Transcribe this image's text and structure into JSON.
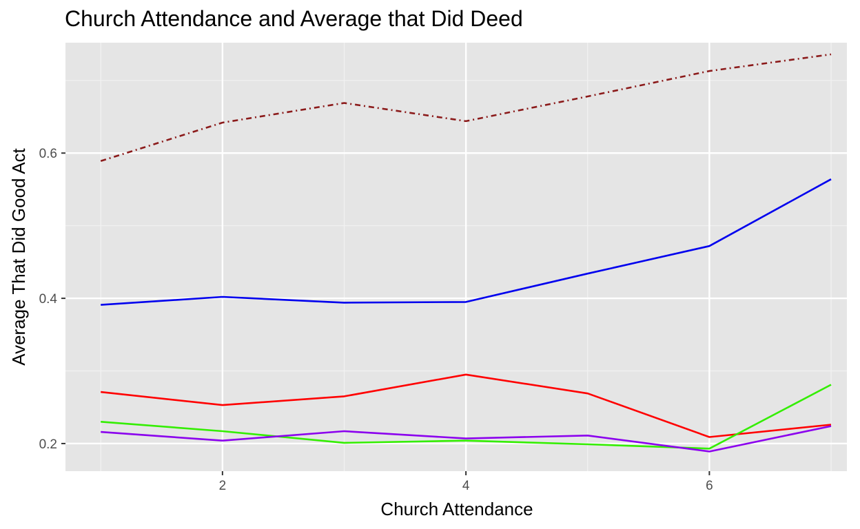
{
  "chart_data": {
    "type": "line",
    "title": "Church Attendance and Average that Did Deed",
    "xlabel": "Church Attendance",
    "ylabel": "Average That Did Good Act",
    "x": [
      1,
      2,
      3,
      4,
      5,
      6,
      7
    ],
    "xlim": [
      0.71,
      7.13
    ],
    "ylim": [
      0.162,
      0.752
    ],
    "x_ticks": [
      2,
      4,
      6
    ],
    "x_tick_labels": [
      "2",
      "4",
      "6"
    ],
    "y_ticks": [
      0.2,
      0.4,
      0.6
    ],
    "y_tick_labels": [
      "0.2",
      "0.4",
      "0.6"
    ],
    "grid": true,
    "legend": "none",
    "background": "#e5e5e5",
    "series": [
      {
        "values": [
          0.589,
          0.642,
          0.669,
          0.644,
          0.678,
          0.713,
          0.736
        ],
        "color": "#8b1a1a",
        "dash": "dashdot"
      },
      {
        "values": [
          0.391,
          0.402,
          0.394,
          0.395,
          0.434,
          0.472,
          0.564
        ],
        "color": "#0000ee",
        "dash": "solid"
      },
      {
        "values": [
          0.271,
          0.253,
          0.265,
          0.295,
          0.269,
          0.209,
          0.226
        ],
        "color": "#ff0000",
        "dash": "solid"
      },
      {
        "values": [
          0.23,
          0.217,
          0.201,
          0.204,
          0.199,
          0.193,
          0.281
        ],
        "color": "#33ee00",
        "dash": "solid"
      },
      {
        "values": [
          0.216,
          0.204,
          0.217,
          0.207,
          0.211,
          0.189,
          0.224
        ],
        "color": "#8b00ee",
        "dash": "solid"
      }
    ]
  }
}
